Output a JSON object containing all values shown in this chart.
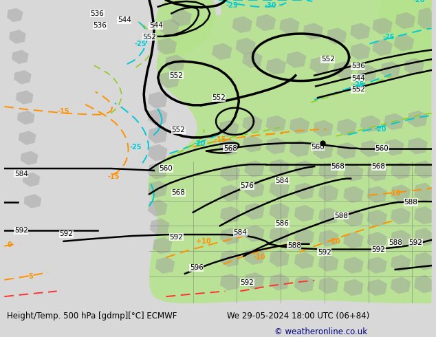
{
  "title_left": "Height/Temp. 500 hPa [gdmp][°C] ECMWF",
  "title_right": "We 29-05-2024 18:00 UTC (06+84)",
  "copyright": "© weatheronline.co.uk",
  "bg_color": "#d8d8d8",
  "green_color": "#b8e890",
  "fig_width": 6.34,
  "fig_height": 4.9,
  "dpi": 100,
  "label_fs": 7.5
}
